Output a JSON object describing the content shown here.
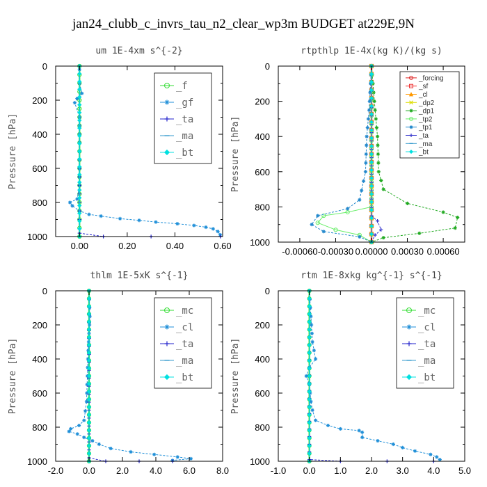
{
  "title": "jan24_clubb_c_invrs_tau_n2_clear_wp3m  BUDGET at229E,9N",
  "chart_data": [
    {
      "type": "line",
      "subtitle": "um   1E-4xm s^{-2}",
      "ylabel": "Pressure [hPa]",
      "xlim": [
        -0.1,
        0.6
      ],
      "ylim": [
        1000,
        0
      ],
      "xticks": [
        0.0,
        0.2,
        0.4,
        0.6
      ],
      "xticklabels": [
        "0.00",
        "0.20",
        "0.40",
        "0.60"
      ],
      "yticks": [
        0,
        200,
        400,
        600,
        800,
        1000
      ],
      "yticklabels": [
        "0",
        "200",
        "400",
        "600",
        "800",
        "1000"
      ],
      "legend": {
        "position": "top-right",
        "size": "large"
      },
      "series": [
        {
          "name": "_f",
          "color": "#33dd33",
          "marker": "circle",
          "points": [
            [
              0.0,
              0
            ],
            [
              0.0,
              200
            ],
            [
              0.0,
              400
            ],
            [
              0.0,
              600
            ],
            [
              0.0,
              800
            ],
            [
              0.0,
              1000
            ]
          ]
        },
        {
          "name": "_gf",
          "color": "#1f8fd8",
          "marker": "star",
          "points": [
            [
              0.0,
              20
            ],
            [
              0.0,
              100
            ],
            [
              0.01,
              160
            ],
            [
              -0.01,
              190
            ],
            [
              -0.02,
              215
            ],
            [
              0.0,
              300
            ],
            [
              0.0,
              400
            ],
            [
              0.0,
              500
            ],
            [
              0.0,
              600
            ],
            [
              0.0,
              700
            ],
            [
              -0.01,
              780
            ],
            [
              -0.04,
              800
            ],
            [
              -0.03,
              820
            ],
            [
              0.0,
              850
            ],
            [
              0.04,
              870
            ],
            [
              0.09,
              880
            ],
            [
              0.17,
              895
            ],
            [
              0.25,
              905
            ],
            [
              0.32,
              915
            ],
            [
              0.41,
              925
            ],
            [
              0.48,
              935
            ],
            [
              0.53,
              945
            ],
            [
              0.56,
              955
            ],
            [
              0.58,
              970
            ],
            [
              0.59,
              990
            ]
          ]
        },
        {
          "name": "_ta",
          "color": "#2222cc",
          "marker": "plus",
          "points": [
            [
              0.0,
              0
            ],
            [
              0.0,
              500
            ],
            [
              0.0,
              900
            ],
            [
              0.0,
              980
            ],
            [
              0.1,
              1000
            ],
            [
              0.3,
              1000
            ],
            [
              0.59,
              1000
            ]
          ]
        },
        {
          "name": "_ma",
          "color": "#3399cc",
          "marker": "dash",
          "points": [
            [
              0.0,
              0
            ],
            [
              0.0,
              1000
            ]
          ]
        },
        {
          "name": "_bt",
          "color": "#00e0e0",
          "marker": "diamond",
          "points": [
            [
              0.0,
              0
            ],
            [
              0.0,
              1000
            ]
          ]
        }
      ]
    },
    {
      "type": "line",
      "subtitle": "rtpthlp   1E-4x(kg K)/(kg s)",
      "ylabel": "Pressure [hPa]",
      "xlim": [
        -0.00078,
        0.00078
      ],
      "ylim": [
        1000,
        0
      ],
      "xticks": [
        -0.0006,
        -0.0003,
        0.0,
        0.0003,
        0.0006
      ],
      "xticklabels": [
        "-0.00060",
        "-0.00030",
        "0.00000",
        "0.00030",
        "0.00060"
      ],
      "yticks": [
        0,
        200,
        400,
        600,
        800,
        1000
      ],
      "yticklabels": [
        "0",
        "200",
        "400",
        "600",
        "800",
        "1000"
      ],
      "legend": {
        "position": "top-right",
        "size": "small"
      },
      "series": [
        {
          "name": "_forcing",
          "color": "#dd2222",
          "marker": "circle",
          "points": [
            [
              0.0,
              0
            ],
            [
              0.0,
              1000
            ]
          ]
        },
        {
          "name": "_sf",
          "color": "#ee3333",
          "marker": "square",
          "points": [
            [
              0.0,
              0
            ],
            [
              0.0,
              1000
            ]
          ]
        },
        {
          "name": "_cl",
          "color": "#ff9900",
          "marker": "triangle",
          "points": [
            [
              0.0,
              0
            ],
            [
              0.0,
              1000
            ]
          ]
        },
        {
          "name": "_dp2",
          "color": "#dddd00",
          "marker": "cross",
          "points": [
            [
              0.0,
              0
            ],
            [
              0.0,
              1000
            ]
          ]
        },
        {
          "name": "_dp1",
          "color": "#22aa22",
          "marker": "star",
          "points": [
            [
              0.0,
              0
            ],
            [
              3e-05,
              250
            ],
            [
              5e-05,
              400
            ],
            [
              6e-05,
              600
            ],
            [
              0.0001,
              700
            ],
            [
              0.0003,
              780
            ],
            [
              0.0006,
              830
            ],
            [
              0.00072,
              860
            ],
            [
              0.0007,
              920
            ],
            [
              0.0004,
              950
            ],
            [
              0.0001,
              975
            ],
            [
              0.0,
              1000
            ]
          ]
        },
        {
          "name": "_tp2",
          "color": "#66ee66",
          "marker": "circle",
          "points": [
            [
              0.0,
              0
            ],
            [
              0.0,
              800
            ],
            [
              -0.0002,
              830
            ],
            [
              -0.0004,
              850
            ],
            [
              -0.00045,
              890
            ],
            [
              -0.0003,
              930
            ],
            [
              -0.0001,
              960
            ],
            [
              0.0,
              1000
            ]
          ]
        },
        {
          "name": "_tp1",
          "color": "#2288cc",
          "marker": "star",
          "points": [
            [
              0.0,
              0
            ],
            [
              -2e-05,
              250
            ],
            [
              -4e-05,
              400
            ],
            [
              -5e-05,
              600
            ],
            [
              -0.0001,
              760
            ],
            [
              -0.0002,
              810
            ],
            [
              -0.00045,
              850
            ],
            [
              -0.0005,
              900
            ],
            [
              -0.0004,
              940
            ],
            [
              -0.0001,
              970
            ],
            [
              0.0,
              1000
            ]
          ]
        },
        {
          "name": "_ta",
          "color": "#3333cc",
          "marker": "plus",
          "points": [
            [
              0.0,
              0
            ],
            [
              0.0,
              850
            ],
            [
              5e-05,
              880
            ],
            [
              8e-05,
              930
            ],
            [
              3e-05,
              960
            ],
            [
              0.0,
              1000
            ]
          ]
        },
        {
          "name": "_ma",
          "color": "#3399cc",
          "marker": "dash",
          "points": [
            [
              0.0,
              0
            ],
            [
              0.0,
              1000
            ]
          ]
        },
        {
          "name": "_bt",
          "color": "#00e0e0",
          "marker": "diamond",
          "points": [
            [
              0.0,
              0
            ],
            [
              0.0,
              1000
            ]
          ]
        }
      ]
    },
    {
      "type": "line",
      "subtitle": "thlm   1E-5xK s^{-1}",
      "ylabel": "Pressure [hPa]",
      "xlim": [
        -2.0,
        8.0
      ],
      "ylim": [
        1000,
        0
      ],
      "xticks": [
        -2.0,
        0.0,
        2.0,
        4.0,
        6.0,
        8.0
      ],
      "xticklabels": [
        "-2.0",
        "0.0",
        "2.0",
        "4.0",
        "6.0",
        "8.0"
      ],
      "yticks": [
        0,
        200,
        400,
        600,
        800,
        1000
      ],
      "yticklabels": [
        "0",
        "200",
        "400",
        "600",
        "800",
        "1000"
      ],
      "legend": {
        "position": "top-right",
        "size": "large"
      },
      "series": [
        {
          "name": "_mc",
          "color": "#33dd33",
          "marker": "circle",
          "points": [
            [
              0.0,
              0
            ],
            [
              0.0,
              1000
            ]
          ]
        },
        {
          "name": "_cl",
          "color": "#1f8fd8",
          "marker": "star",
          "points": [
            [
              0.0,
              0
            ],
            [
              0.05,
              150
            ],
            [
              0.0,
              250
            ],
            [
              -0.05,
              350
            ],
            [
              -0.1,
              500
            ],
            [
              -0.15,
              650
            ],
            [
              -0.3,
              760
            ],
            [
              -0.6,
              790
            ],
            [
              -1.1,
              810
            ],
            [
              -1.2,
              825
            ],
            [
              -0.7,
              840
            ],
            [
              -0.3,
              860
            ],
            [
              0.2,
              880
            ],
            [
              0.6,
              900
            ],
            [
              1.3,
              925
            ],
            [
              2.5,
              945
            ],
            [
              3.9,
              960
            ],
            [
              5.3,
              975
            ],
            [
              6.1,
              985
            ],
            [
              5.0,
              995
            ]
          ]
        },
        {
          "name": "_ta",
          "color": "#2222cc",
          "marker": "plus",
          "points": [
            [
              0.0,
              0
            ],
            [
              0.0,
              980
            ],
            [
              1.0,
              1000
            ],
            [
              3.0,
              1000
            ],
            [
              5.0,
              1000
            ]
          ]
        },
        {
          "name": "_ma",
          "color": "#3399cc",
          "marker": "dash",
          "points": [
            [
              0.0,
              0
            ],
            [
              0.0,
              1000
            ]
          ]
        },
        {
          "name": "_bt",
          "color": "#00e0e0",
          "marker": "diamond",
          "points": [
            [
              0.0,
              0
            ],
            [
              0.0,
              1000
            ]
          ]
        }
      ]
    },
    {
      "type": "line",
      "subtitle": "rtm   1E-8xkg kg^{-1} s^{-1}",
      "ylabel": "Pressure [hPa]",
      "xlim": [
        -1.0,
        5.0
      ],
      "ylim": [
        1000,
        0
      ],
      "xticks": [
        -1.0,
        0.0,
        1.0,
        2.0,
        3.0,
        4.0,
        5.0
      ],
      "xticklabels": [
        "-1.0",
        "0.0",
        "1.0",
        "2.0",
        "3.0",
        "4.0",
        "5.0"
      ],
      "yticks": [
        0,
        200,
        400,
        600,
        800,
        1000
      ],
      "yticklabels": [
        "0",
        "200",
        "400",
        "600",
        "800",
        "1000"
      ],
      "legend": {
        "position": "top-right",
        "size": "large"
      },
      "series": [
        {
          "name": "_mc",
          "color": "#33dd33",
          "marker": "circle",
          "points": [
            [
              0.0,
              0
            ],
            [
              0.0,
              1000
            ]
          ]
        },
        {
          "name": "_cl",
          "color": "#1f8fd8",
          "marker": "star",
          "points": [
            [
              0.0,
              0
            ],
            [
              0.05,
              150
            ],
            [
              0.1,
              300
            ],
            [
              0.2,
              400
            ],
            [
              0.0,
              450
            ],
            [
              -0.1,
              500
            ],
            [
              0.0,
              550
            ],
            [
              0.05,
              650
            ],
            [
              0.1,
              700
            ],
            [
              0.2,
              760
            ],
            [
              0.6,
              790
            ],
            [
              1.0,
              810
            ],
            [
              1.6,
              820
            ],
            [
              1.7,
              830
            ],
            [
              1.7,
              860
            ],
            [
              2.2,
              880
            ],
            [
              2.7,
              900
            ],
            [
              3.0,
              920
            ],
            [
              3.4,
              940
            ],
            [
              3.9,
              960
            ],
            [
              4.1,
              975
            ],
            [
              4.2,
              990
            ]
          ]
        },
        {
          "name": "_ta",
          "color": "#2222cc",
          "marker": "plus",
          "points": [
            [
              0.0,
              0
            ],
            [
              0.0,
              990
            ],
            [
              1.0,
              1000
            ],
            [
              2.5,
              1000
            ],
            [
              4.0,
              1000
            ]
          ]
        },
        {
          "name": "_ma",
          "color": "#3399cc",
          "marker": "dash",
          "points": [
            [
              0.0,
              0
            ],
            [
              0.0,
              1000
            ]
          ]
        },
        {
          "name": "_bt",
          "color": "#00e0e0",
          "marker": "diamond",
          "points": [
            [
              0.0,
              0
            ],
            [
              0.0,
              1000
            ]
          ]
        }
      ]
    }
  ]
}
